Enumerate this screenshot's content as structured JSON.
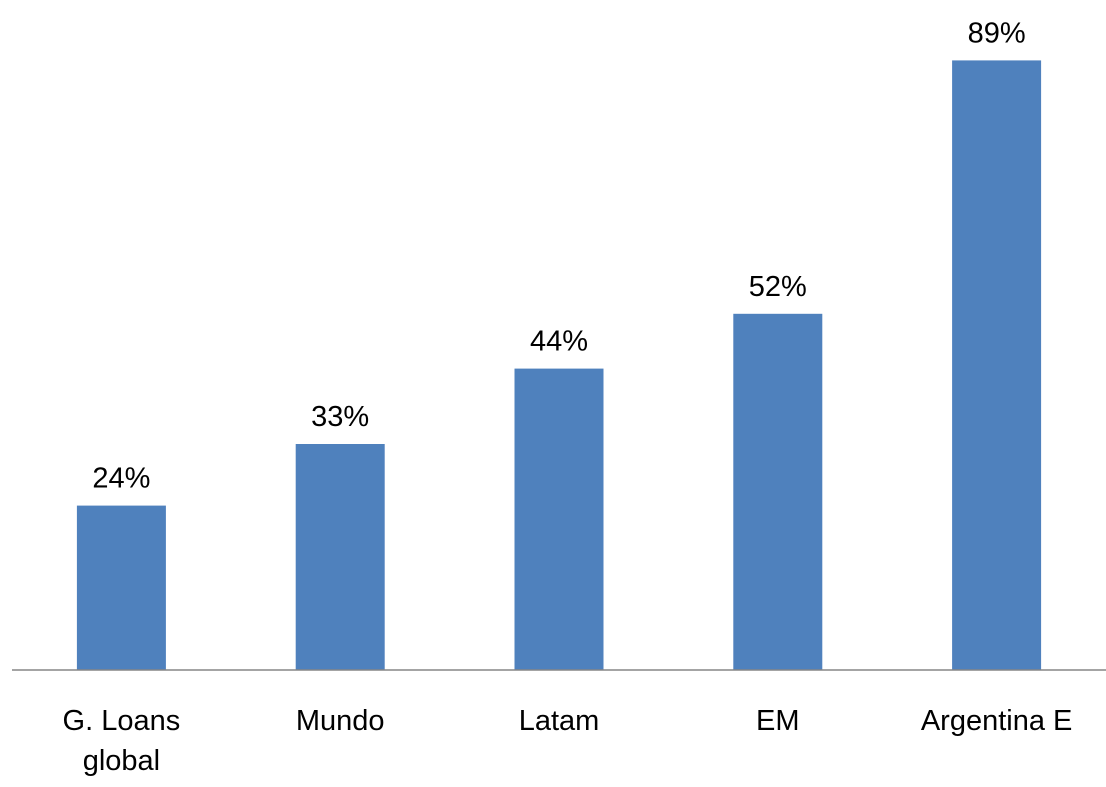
{
  "chart_data": {
    "type": "bar",
    "title": "",
    "xlabel": "",
    "ylabel": "",
    "categories": [
      [
        "G. Loans",
        "global"
      ],
      [
        "Mundo"
      ],
      [
        "Latam"
      ],
      [
        "EM"
      ],
      [
        "Argentina E"
      ]
    ],
    "values": [
      24,
      33,
      44,
      52,
      89
    ],
    "value_labels": [
      "24%",
      "33%",
      "44%",
      "52%",
      "89%"
    ],
    "unit": "%",
    "ylim": [
      0,
      100
    ],
    "grid": false,
    "legend": "none",
    "colors": {
      "bar": "#4F81BD",
      "axis": "#868686",
      "text": "#000000"
    }
  }
}
